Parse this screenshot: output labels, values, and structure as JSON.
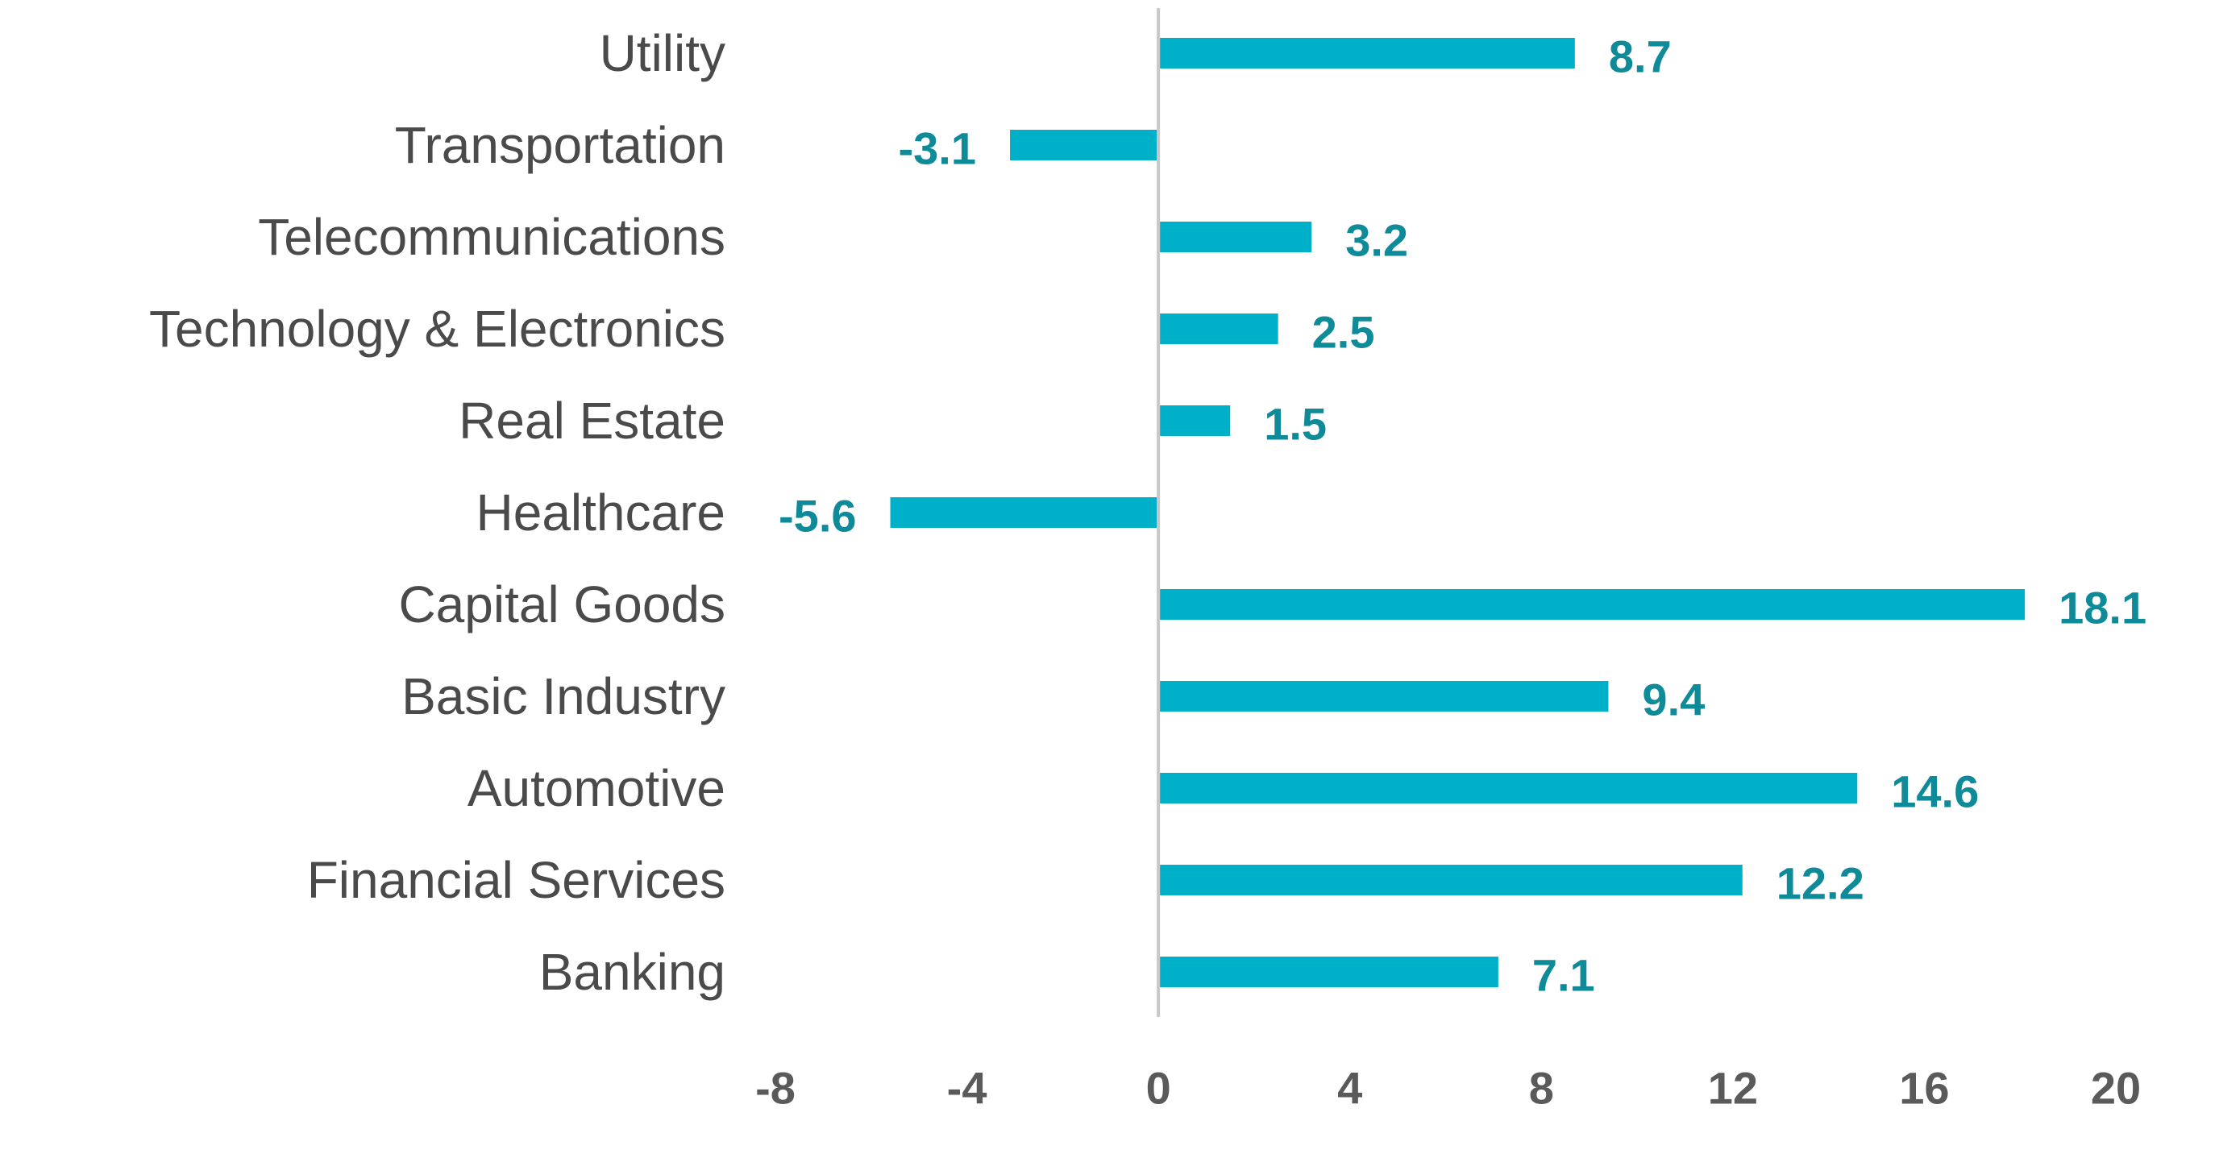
{
  "chart_data": {
    "type": "bar",
    "orientation": "horizontal",
    "categories": [
      "Utility",
      "Transportation",
      "Telecommunications",
      "Technology & Electronics",
      "Real Estate",
      "Healthcare",
      "Capital Goods",
      "Basic Industry",
      "Automotive",
      "Financial Services",
      "Banking"
    ],
    "values": [
      8.7,
      -3.1,
      3.2,
      2.5,
      1.5,
      -5.6,
      18.1,
      9.4,
      14.6,
      12.2,
      7.1
    ],
    "value_labels": [
      "8.7",
      "-3.1",
      "3.2",
      "2.5",
      "1.5",
      "-5.6",
      "18.1",
      "9.4",
      "14.6",
      "12.2",
      "7.1"
    ],
    "xlim": [
      -8,
      20
    ],
    "xticks": [
      -8,
      -4,
      0,
      4,
      8,
      12,
      16,
      20
    ],
    "xtick_labels": [
      "-8",
      "-4",
      "0",
      "4",
      "8",
      "12",
      "16",
      "20"
    ],
    "title": "",
    "xlabel": "",
    "ylabel": "",
    "grid": false,
    "legend": "none",
    "bar_color": "#00b0c8",
    "value_label_color": "#0e8a99",
    "axis_color": "#c8c8c8"
  }
}
